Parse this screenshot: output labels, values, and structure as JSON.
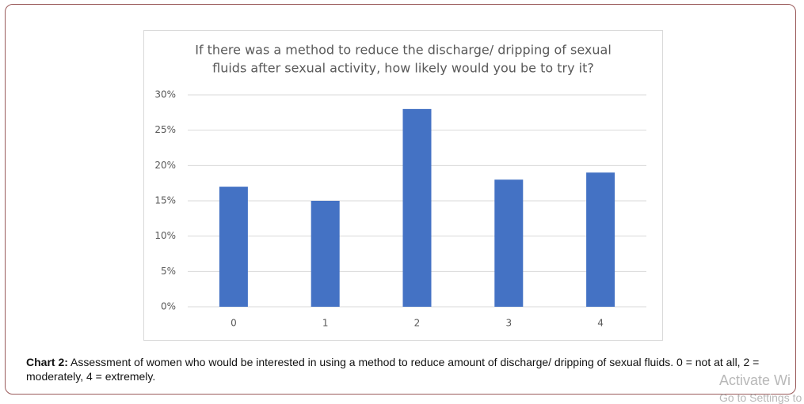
{
  "chart_data": {
    "type": "bar",
    "title": [
      "If there was a method to reduce the discharge/ dripping of sexual",
      "fluids after sexual activity, how likely would you be to try it?"
    ],
    "categories": [
      "0",
      "1",
      "2",
      "3",
      "4"
    ],
    "values": [
      17,
      15,
      28,
      18,
      19
    ],
    "color": "#4472c4",
    "ylim": [
      0,
      30
    ],
    "yticks": [
      {
        "value": 0,
        "label": "0%"
      },
      {
        "value": 5,
        "label": "5%"
      },
      {
        "value": 10,
        "label": "10%"
      },
      {
        "value": 15,
        "label": "15%"
      },
      {
        "value": 20,
        "label": "20%"
      },
      {
        "value": 25,
        "label": "25%"
      },
      {
        "value": 30,
        "label": "30%"
      }
    ],
    "grid": true
  },
  "caption": {
    "label": "Chart 2:",
    "text": "Assessment of women who would be interested in using a method to reduce amount of discharge/ dripping of sexual fluids. 0 = not at all, 2 = moderately, 4 = extremely."
  },
  "watermark": {
    "title": "Activate Wi",
    "subtitle": "Go to Settings to"
  }
}
